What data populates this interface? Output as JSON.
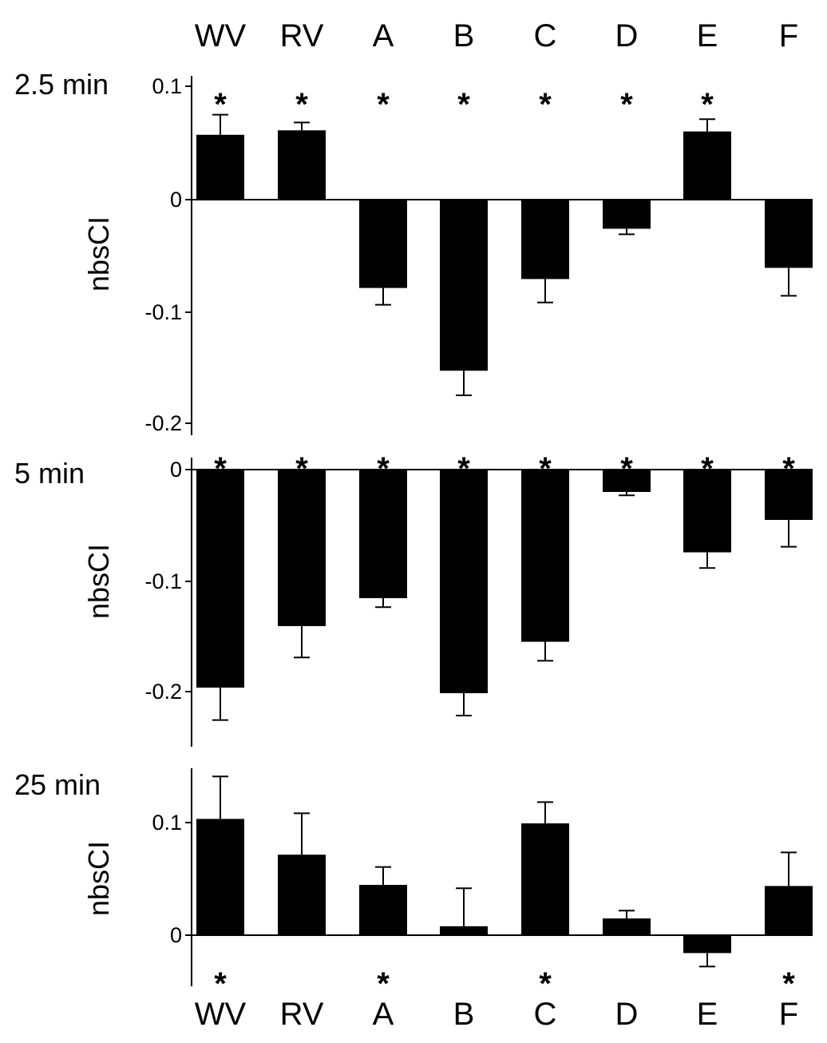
{
  "chart_data": [
    {
      "type": "bar",
      "title": "2.5 min",
      "ylabel": "nbsCI",
      "categories": [
        "WV",
        "RV",
        "A",
        "B",
        "C",
        "D",
        "E",
        "F"
      ],
      "values": [
        0.058,
        0.062,
        -0.079,
        -0.153,
        -0.071,
        -0.026,
        0.061,
        -0.061
      ],
      "errors": [
        0.018,
        0.007,
        0.015,
        0.022,
        0.021,
        0.005,
        0.011,
        0.025
      ],
      "significance": [
        "*",
        "*",
        "*",
        "*",
        "*",
        "*",
        "*",
        ""
      ],
      "yticks": [
        "0.1",
        "0",
        "-0.1",
        "-0.2"
      ],
      "ylim": [
        -0.2,
        0.1
      ]
    },
    {
      "type": "bar",
      "title": "5 min",
      "ylabel": "nbsCI",
      "categories": [
        "WV",
        "RV",
        "A",
        "B",
        "C",
        "D",
        "E",
        "F"
      ],
      "values": [
        -0.195,
        -0.14,
        -0.115,
        -0.2,
        -0.154,
        -0.02,
        -0.074,
        -0.045
      ],
      "errors": [
        0.029,
        0.028,
        0.008,
        0.02,
        0.017,
        0.003,
        0.014,
        0.024
      ],
      "significance": [
        "*",
        "*",
        "*",
        "*",
        "*",
        "*",
        "*",
        "*"
      ],
      "yticks": [
        "0",
        "-0.1",
        "-0.2"
      ],
      "ylim": [
        -0.245,
        0.01
      ]
    },
    {
      "type": "bar",
      "title": "25 min",
      "ylabel": "nbsCI",
      "categories": [
        "WV",
        "RV",
        "A",
        "B",
        "C",
        "D",
        "E",
        "F"
      ],
      "values": [
        0.104,
        0.072,
        0.045,
        0.008,
        0.1,
        0.015,
        -0.016,
        0.044
      ],
      "errors": [
        0.038,
        0.037,
        0.016,
        0.034,
        0.019,
        0.007,
        0.012,
        0.03
      ],
      "significance": [
        "*",
        "",
        "*",
        "",
        "*",
        "",
        "",
        "*"
      ],
      "yticks": [
        "0.1",
        "0"
      ],
      "ylim": [
        -0.045,
        0.15
      ]
    }
  ],
  "colors": {
    "bar": "#000000",
    "axis": "#000000",
    "background": "#ffffff"
  }
}
